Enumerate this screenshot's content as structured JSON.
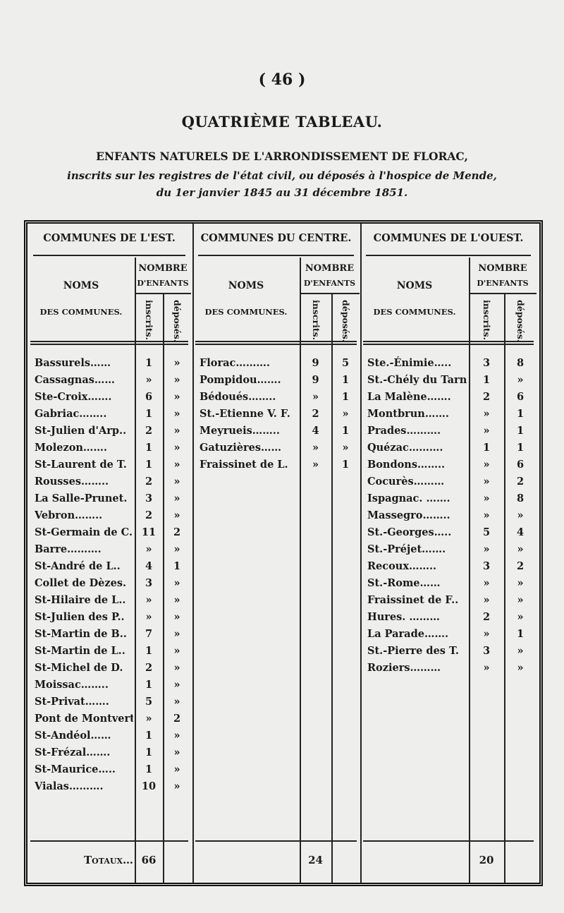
{
  "page_number": "( 46 )",
  "title": "QUATRIÈME TABLEAU.",
  "subtitle": "ENFANTS NATURELS DE L'ARRONDISSEMENT DE FLORAC,",
  "description_line1": "inscrits sur les registres de l'état civil, ou déposés à l'hospice de Mende,",
  "description_line2": "du 1er janvier 1845 au 31 décembre 1851.",
  "table": {
    "col_headers": {
      "nombre": "NOMBRE",
      "d_enfants": "D'ENFANTS",
      "noms": "NOMS",
      "des_communes": "DES COMMUNES.",
      "inscrits": "inscrits.",
      "deposes": "déposés."
    },
    "sections": [
      {
        "title": "COMMUNES DE L'EST.",
        "rows": [
          [
            "Bassurels……",
            "1",
            "»"
          ],
          [
            "Cassagnas……",
            "»",
            "»"
          ],
          [
            "Ste-Croix…….",
            "6",
            "»"
          ],
          [
            "Gabriac……..",
            "1",
            "»"
          ],
          [
            "St-Julien d'Arp..",
            "2",
            "»"
          ],
          [
            "Molezon…….",
            "1",
            "»"
          ],
          [
            "St-Laurent de T.",
            "1",
            "»"
          ],
          [
            "Rousses……..",
            "2",
            "»"
          ],
          [
            "La Salle-Prunet.",
            "3",
            "»"
          ],
          [
            "Vebron……..",
            "2",
            "»"
          ],
          [
            "St-Germain de C.",
            "11",
            "2"
          ],
          [
            "Barre……….",
            "»",
            "»"
          ],
          [
            "St-André de L..",
            "4",
            "1"
          ],
          [
            "Collet de Dèzes.",
            "3",
            "»"
          ],
          [
            "St-Hilaire de L..",
            "»",
            "»"
          ],
          [
            "St-Julien des P..",
            "»",
            "»"
          ],
          [
            "St-Martin de B..",
            "7",
            "»"
          ],
          [
            "St-Martin de L..",
            "1",
            "»"
          ],
          [
            "St-Michel de D.",
            "2",
            "»"
          ],
          [
            "Moissac……..",
            "1",
            "»"
          ],
          [
            "St-Privat…….",
            "5",
            "»"
          ],
          [
            "Pont de Montvert",
            "»",
            "2"
          ],
          [
            "St-Andéol……",
            "1",
            "»"
          ],
          [
            "St-Frézal…….",
            "1",
            "»"
          ],
          [
            "St-Maurice…..",
            "1",
            "»"
          ],
          [
            "Vialas……….",
            "10",
            "»"
          ]
        ],
        "total_label": "Totaux…",
        "total": "66"
      },
      {
        "title": "COMMUNES DU CENTRE.",
        "rows": [
          [
            "Florac……….",
            "9",
            "5"
          ],
          [
            "Pompidou…….",
            "9",
            "1"
          ],
          [
            "Bédoués……..",
            "»",
            "1"
          ],
          [
            "St.-Etienne V. F.",
            "2",
            "»"
          ],
          [
            "Meyrueis……..",
            "4",
            "1"
          ],
          [
            "Gatuzières……",
            "»",
            "»"
          ],
          [
            "Fraissinet de L.",
            "»",
            "1"
          ]
        ],
        "total": "24"
      },
      {
        "title": "COMMUNES DE L'OUEST.",
        "rows": [
          [
            "Ste.-Énimie…..",
            "3",
            "8"
          ],
          [
            "St.-Chély du Tarn",
            "1",
            "»"
          ],
          [
            "La Malène…….",
            "2",
            "6"
          ],
          [
            "Montbrun…….",
            "»",
            "1"
          ],
          [
            "Prades……….",
            "»",
            "1"
          ],
          [
            "Quézac……….",
            "1",
            "1"
          ],
          [
            "Bondons……..",
            "»",
            "6"
          ],
          [
            "Cocurès………",
            "»",
            "2"
          ],
          [
            "Ispagnac. …….",
            "»",
            "8"
          ],
          [
            "Massegro……..",
            "»",
            "»"
          ],
          [
            "St.-Georges…..",
            "5",
            "4"
          ],
          [
            "St.-Préjet…….",
            "»",
            "»"
          ],
          [
            "Recoux……..",
            "3",
            "2"
          ],
          [
            "St.-Rome……",
            "»",
            "»"
          ],
          [
            "Fraissinet de F..",
            "»",
            "»"
          ],
          [
            "Hures. ………",
            "2",
            "»"
          ],
          [
            "La Parade…….",
            "»",
            "1"
          ],
          [
            "St.-Pierre des T.",
            "3",
            "»"
          ],
          [
            "Roziers………",
            "»",
            "»"
          ]
        ],
        "total": "20"
      }
    ]
  }
}
